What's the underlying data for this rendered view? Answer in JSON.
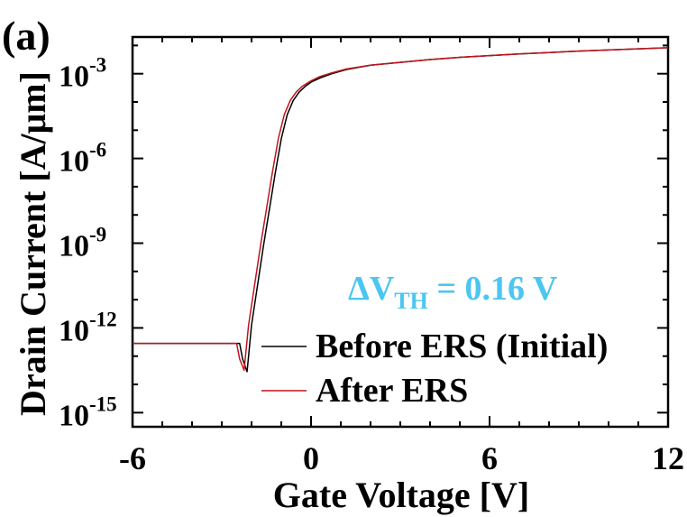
{
  "panel_label": "(a)",
  "annotation": {
    "delta": "ΔV",
    "sub": "TH",
    "rest": " = 0.16 V",
    "color": "#4cc6f0"
  },
  "chart_data": {
    "type": "line",
    "xlabel": "Gate Voltage [V]",
    "ylabel": "Drain Current [A/μm]",
    "xlim": [
      -6,
      12
    ],
    "ylim_log10": [
      -15.5,
      -1.7
    ],
    "y_scale": "log",
    "x_ticks": [
      "-6",
      "0",
      "6",
      "12"
    ],
    "x_tick_values": [
      -6,
      0,
      6,
      12
    ],
    "y_ticks": [
      {
        "base": "10",
        "exp": "-3",
        "value": -3
      },
      {
        "base": "10",
        "exp": "-6",
        "value": -6
      },
      {
        "base": "10",
        "exp": "-9",
        "value": -9
      },
      {
        "base": "10",
        "exp": "-12",
        "value": -12
      },
      {
        "base": "10",
        "exp": "-15",
        "value": -15
      }
    ],
    "grid": false,
    "legend_position": "bottom-right",
    "series": [
      {
        "name": "Before ERS (Initial)",
        "color": "#000000",
        "x": [
          -6,
          -2.4,
          -2.3,
          -2.15,
          -2.0,
          -1.8,
          -1.6,
          -1.4,
          -1.2,
          -1.0,
          -0.8,
          -0.6,
          -0.4,
          -0.2,
          0,
          0.3,
          0.7,
          1.2,
          2,
          3,
          4,
          5,
          6,
          7,
          8,
          9,
          10,
          11,
          12
        ],
        "log10_y": [
          -12.55,
          -12.55,
          -13.1,
          -13.55,
          -11.9,
          -10.5,
          -9.1,
          -7.8,
          -6.5,
          -5.3,
          -4.45,
          -3.95,
          -3.65,
          -3.45,
          -3.3,
          -3.15,
          -3.0,
          -2.85,
          -2.7,
          -2.6,
          -2.5,
          -2.42,
          -2.36,
          -2.3,
          -2.25,
          -2.2,
          -2.16,
          -2.12,
          -2.08
        ]
      },
      {
        "name": "After ERS",
        "color": "#c0141d",
        "x": [
          -6,
          -2.5,
          -2.4,
          -2.25,
          -2.1,
          -1.9,
          -1.7,
          -1.5,
          -1.3,
          -1.1,
          -0.9,
          -0.7,
          -0.5,
          -0.3,
          0,
          0.3,
          0.7,
          1.2,
          2,
          3,
          4,
          5,
          6,
          7,
          8,
          9,
          10,
          11,
          12
        ],
        "log10_y": [
          -12.55,
          -12.55,
          -13.1,
          -13.5,
          -11.9,
          -10.5,
          -9.1,
          -7.8,
          -6.5,
          -5.3,
          -4.45,
          -3.95,
          -3.65,
          -3.45,
          -3.25,
          -3.1,
          -2.97,
          -2.83,
          -2.7,
          -2.6,
          -2.5,
          -2.42,
          -2.36,
          -2.3,
          -2.25,
          -2.2,
          -2.16,
          -2.12,
          -2.08
        ]
      }
    ]
  }
}
